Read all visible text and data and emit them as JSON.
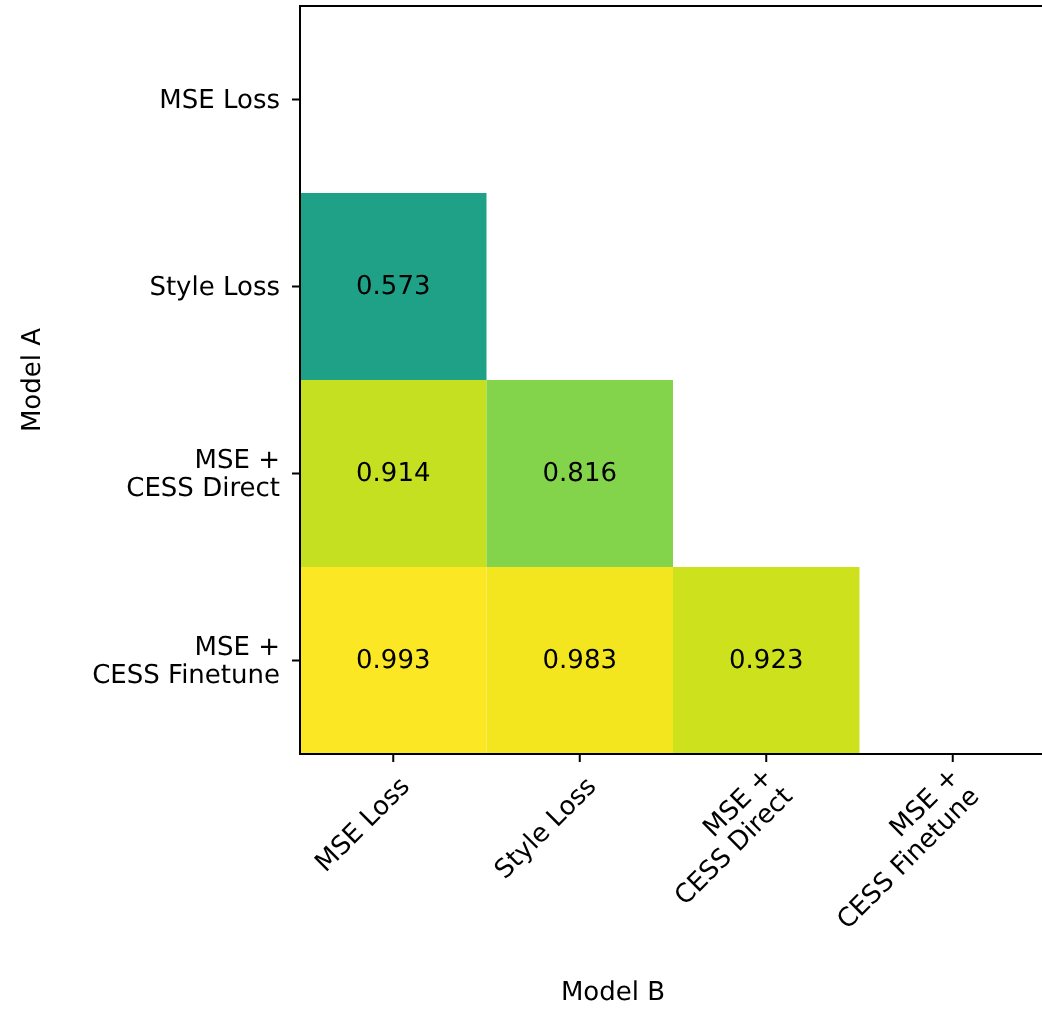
{
  "chart_data": {
    "type": "heatmap",
    "xlabel": "Model B",
    "ylabel": "Model A",
    "categories": [
      "MSE Loss",
      "Style Loss",
      "MSE +\nCESS Direct",
      "MSE +\nCESS Finetune"
    ],
    "y_categories": [
      "MSE Loss",
      "Style Loss",
      "MSE +\nCESS Direct",
      "MSE +\nCESS Finetune"
    ],
    "cells": [
      [
        null,
        null,
        null,
        null
      ],
      [
        0.573,
        null,
        null,
        null
      ],
      [
        0.914,
        0.816,
        null,
        null
      ],
      [
        0.993,
        0.983,
        0.923,
        null
      ]
    ],
    "data_labels": true
  }
}
